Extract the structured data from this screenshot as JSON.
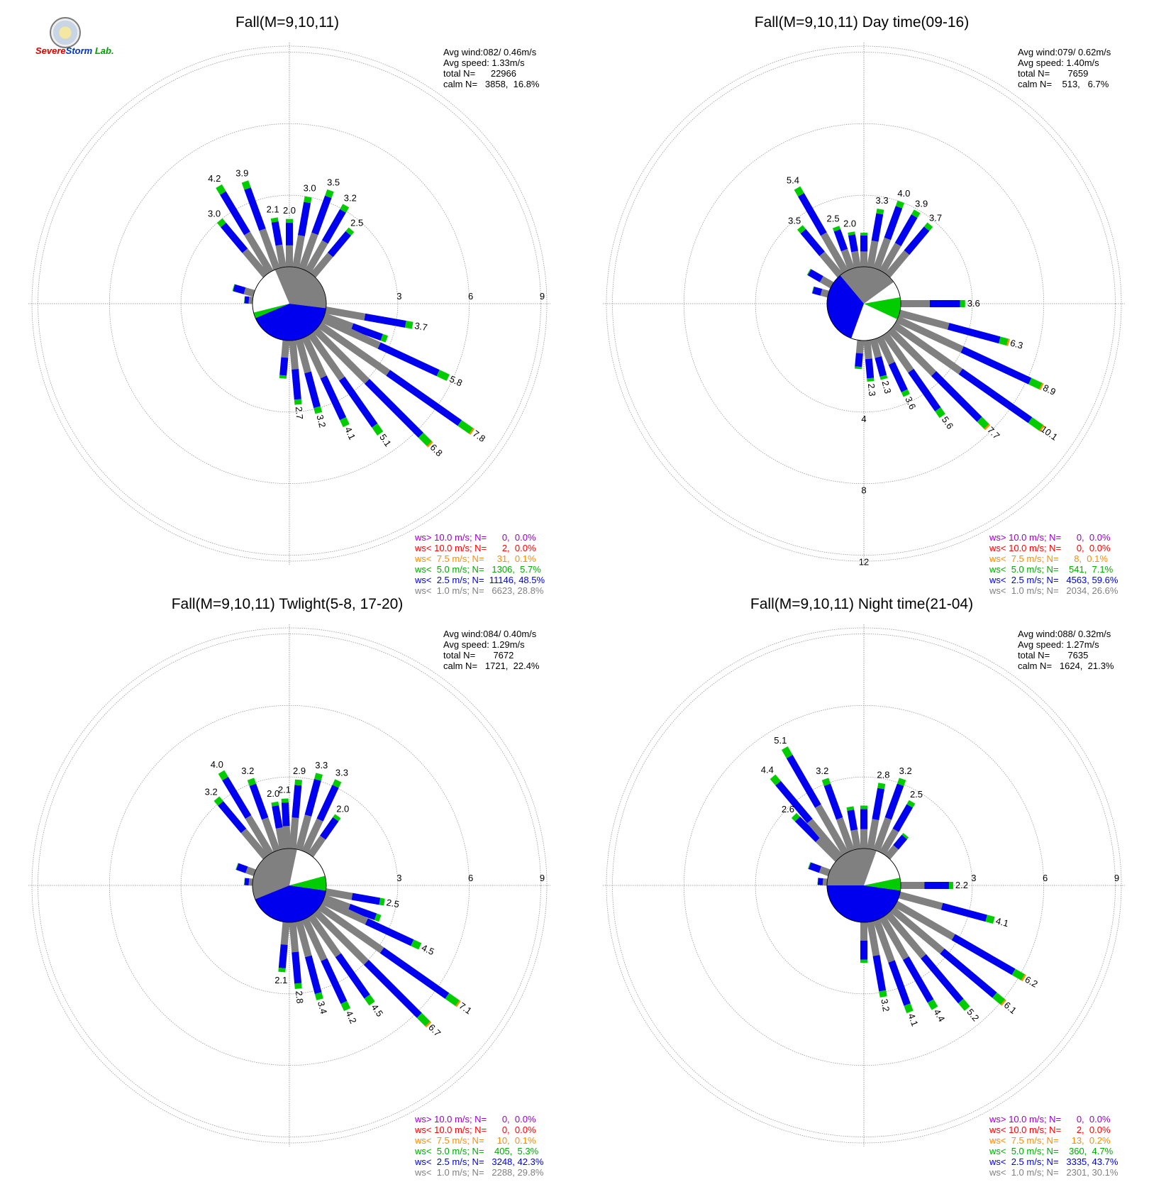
{
  "logo": {
    "line1": "Severe",
    "line2": "Storm",
    "line3": "Lab."
  },
  "chart_data": [
    {
      "type": "windrose",
      "title": "Fall(M=9,10,11)",
      "ring_labels": [
        "3",
        "6",
        "9"
      ],
      "ring_label_dir": 90,
      "stats": {
        "avg_wind": "Avg wind:082/ 0.46m/s",
        "avg_speed": "Avg speed: 1.33m/s",
        "total": "total N=      22966",
        "calm": "calm N=   3858,  16.8%"
      },
      "calm": {
        "gray": [
          337,
          97
        ],
        "blue": [
          97,
          247
        ],
        "green": [
          247,
          256
        ]
      },
      "petals": [
        [
          110,
          2.8
        ],
        [
          275,
          0.35
        ],
        [
          286,
          0.9
        ],
        [
          320,
          3.0
        ],
        [
          329,
          4.2
        ],
        [
          340,
          3.9
        ],
        [
          350,
          2.1
        ],
        [
          360,
          2.0
        ],
        [
          0,
          2.0
        ],
        [
          10,
          3.0
        ],
        [
          20,
          3.5
        ],
        [
          30,
          3.2
        ],
        [
          40,
          2.5
        ],
        [
          100,
          3.7
        ],
        [
          115,
          5.8
        ],
        [
          125,
          7.8
        ],
        [
          135,
          6.8
        ],
        [
          145,
          5.1
        ],
        [
          155,
          4.1
        ],
        [
          165,
          3.2
        ],
        [
          175,
          2.7
        ],
        [
          185,
          1.6
        ]
      ],
      "labeled": [
        [
          100,
          3.7
        ],
        [
          115,
          5.8
        ],
        [
          125,
          7.8
        ],
        [
          135,
          6.8
        ],
        [
          145,
          5.1
        ],
        [
          155,
          4.1
        ],
        [
          165,
          3.2
        ],
        [
          175,
          2.7
        ],
        [
          329,
          4.2
        ],
        [
          340,
          3.9
        ],
        [
          320,
          3.0
        ],
        [
          350,
          2.1
        ],
        [
          0,
          2.0
        ],
        [
          10,
          3.0
        ],
        [
          20,
          3.5
        ],
        [
          30,
          3.2
        ],
        [
          40,
          2.5
        ]
      ],
      "legend": [
        "ws> 10.0 m/s; N=      0,  0.0%",
        "ws< 10.0 m/s; N=      2,  0.0%",
        "ws<  7.5 m/s; N=     31,  0.1%",
        "ws<  5.0 m/s; N=   1306,  5.7%",
        "ws<  2.5 m/s; N=  11146, 48.5%",
        "ws<  1.0 m/s; N=   6623, 28.8%"
      ]
    },
    {
      "type": "windrose",
      "title": "Fall(M=9,10,11) Day time(09-16)",
      "ring_labels": [
        "4",
        "8",
        "12"
      ],
      "ring_label_dir": 180,
      "stats": {
        "avg_wind": "Avg wind:079/ 0.62m/s",
        "avg_speed": "Avg speed: 1.40m/s",
        "total": "total N=       7659",
        "calm": "calm N=    513,   6.7%"
      },
      "calm": {
        "gray": [
          320,
          54
        ],
        "blue": [
          200,
          320
        ],
        "green": [
          80,
          115
        ]
      },
      "petals": [
        [
          285,
          0.9
        ],
        [
          300,
          1.5
        ],
        [
          320,
          3.5
        ],
        [
          330,
          5.4
        ],
        [
          340,
          2.5
        ],
        [
          350,
          2.0
        ],
        [
          0,
          1.9
        ],
        [
          10,
          3.3
        ],
        [
          20,
          4.0
        ],
        [
          30,
          3.9
        ],
        [
          40,
          3.7
        ],
        [
          90,
          3.6
        ],
        [
          105,
          6.3
        ],
        [
          115,
          8.9
        ],
        [
          125,
          10.1
        ],
        [
          135,
          7.7
        ],
        [
          145,
          5.6
        ],
        [
          155,
          3.6
        ],
        [
          165,
          2.3
        ],
        [
          175,
          2.3
        ],
        [
          185,
          1.6
        ]
      ],
      "labeled": [
        [
          90,
          3.6
        ],
        [
          105,
          6.3
        ],
        [
          115,
          8.9
        ],
        [
          125,
          10.1
        ],
        [
          135,
          7.7
        ],
        [
          145,
          5.6
        ],
        [
          155,
          3.6
        ],
        [
          165,
          2.3
        ],
        [
          175,
          2.3
        ],
        [
          330,
          5.4
        ],
        [
          320,
          3.5
        ],
        [
          340,
          2.5
        ],
        [
          350,
          2.0
        ],
        [
          10,
          3.3
        ],
        [
          20,
          4.0
        ],
        [
          30,
          3.9
        ],
        [
          40,
          3.7
        ]
      ],
      "legend": [
        "ws> 10.0 m/s; N=      0,  0.0%",
        "ws< 10.0 m/s; N=      0,  0.0%",
        "ws<  7.5 m/s; N=      8,  0.1%",
        "ws<  5.0 m/s; N=    541,  7.1%",
        "ws<  2.5 m/s; N=   4563, 59.6%",
        "ws<  1.0 m/s; N=   2034, 26.6%"
      ]
    },
    {
      "type": "windrose",
      "title": "Fall(M=9,10,11) Twlight(5-8, 17-20)",
      "ring_labels": [
        "3",
        "6",
        "9"
      ],
      "ring_label_dir": 90,
      "stats": {
        "avg_wind": "Avg wind:084/ 0.40m/s",
        "avg_speed": "Avg speed: 1.29m/s",
        "total": "total N=       7672",
        "calm": "calm N=   1721,  22.4%"
      },
      "calm": {
        "gray": [
          248,
          12
        ],
        "blue": [
          98,
          248
        ],
        "green": [
          75,
          98
        ]
      },
      "petals": [
        [
          110,
          2.5
        ],
        [
          275,
          0.35
        ],
        [
          290,
          0.8
        ],
        [
          320,
          3.2
        ],
        [
          329,
          4.0
        ],
        [
          340,
          3.2
        ],
        [
          350,
          2.0
        ],
        [
          357,
          2.1
        ],
        [
          5,
          2.9
        ],
        [
          15,
          3.3
        ],
        [
          25,
          3.3
        ],
        [
          35,
          2.0
        ],
        [
          100,
          2.5
        ],
        [
          115,
          4.5
        ],
        [
          125,
          7.1
        ],
        [
          135,
          6.7
        ],
        [
          145,
          4.5
        ],
        [
          155,
          4.2
        ],
        [
          165,
          3.4
        ],
        [
          175,
          2.8
        ],
        [
          185,
          2.1
        ]
      ],
      "labeled": [
        [
          100,
          2.5
        ],
        [
          115,
          4.5
        ],
        [
          125,
          7.1
        ],
        [
          135,
          6.7
        ],
        [
          145,
          4.5
        ],
        [
          155,
          4.2
        ],
        [
          165,
          3.4
        ],
        [
          175,
          2.8
        ],
        [
          185,
          2.1
        ],
        [
          329,
          4.0
        ],
        [
          320,
          3.2
        ],
        [
          340,
          3.2
        ],
        [
          350,
          2.0
        ],
        [
          357,
          2.1
        ],
        [
          5,
          2.9
        ],
        [
          15,
          3.3
        ],
        [
          25,
          3.3
        ],
        [
          35,
          2.0
        ]
      ],
      "legend": [
        "ws> 10.0 m/s; N=      0,  0.0%",
        "ws< 10.0 m/s; N=      0,  0.0%",
        "ws<  7.5 m/s; N=     10,  0.1%",
        "ws<  5.0 m/s; N=    405,  5.3%",
        "ws<  2.5 m/s; N=   3248, 42.3%",
        "ws<  1.0 m/s; N=   2288, 29.8%"
      ]
    },
    {
      "type": "windrose",
      "title": "Fall(M=9,10,11) Night time(21-04)",
      "ring_labels": [
        "3",
        "6",
        "9"
      ],
      "ring_label_dir": 90,
      "stats": {
        "avg_wind": "Avg wind:088/ 0.32m/s",
        "avg_speed": "Avg speed: 1.27m/s",
        "total": "total N=       7635",
        "calm": "calm N=   1624,  21.3%"
      },
      "calm": {
        "gray": [
          270,
          20
        ],
        "blue": [
          98,
          270
        ],
        "green": [
          78,
          98
        ]
      },
      "petals": [
        [
          275,
          0.4
        ],
        [
          290,
          0.9
        ],
        [
          315,
          2.6
        ],
        [
          320,
          4.4
        ],
        [
          330,
          5.1
        ],
        [
          340,
          3.2
        ],
        [
          350,
          1.8
        ],
        [
          0,
          1.8
        ],
        [
          10,
          2.8
        ],
        [
          20,
          3.2
        ],
        [
          30,
          2.5
        ],
        [
          40,
          1.2
        ],
        [
          90,
          2.2
        ],
        [
          105,
          4.1
        ],
        [
          120,
          6.2
        ],
        [
          130,
          6.1
        ],
        [
          140,
          5.2
        ],
        [
          150,
          4.4
        ],
        [
          160,
          4.1
        ],
        [
          170,
          3.2
        ],
        [
          180,
          1.7
        ]
      ],
      "labeled": [
        [
          90,
          2.2
        ],
        [
          105,
          4.1
        ],
        [
          120,
          6.2
        ],
        [
          130,
          6.1
        ],
        [
          140,
          5.2
        ],
        [
          150,
          4.4
        ],
        [
          160,
          4.1
        ],
        [
          170,
          3.2
        ],
        [
          320,
          4.4
        ],
        [
          330,
          5.1
        ],
        [
          315,
          2.6
        ],
        [
          340,
          3.2
        ],
        [
          10,
          2.8
        ],
        [
          20,
          3.2
        ],
        [
          30,
          2.5
        ]
      ],
      "legend": [
        "ws> 10.0 m/s; N=      0,  0.0%",
        "ws< 10.0 m/s; N=      2,  0.0%",
        "ws<  7.5 m/s; N=     13,  0.2%",
        "ws<  5.0 m/s; N=    360,  4.7%",
        "ws<  2.5 m/s; N=   3335, 43.7%",
        "ws<  1.0 m/s; N=   2301, 30.1%"
      ]
    }
  ],
  "colors": {
    "gray": "#808080",
    "blue": "#0000ee",
    "green": "#00cc00",
    "orange": "#ff8c00",
    "red": "#ff0000",
    "purple": "#9900cc",
    "legend": [
      "#9900cc",
      "#ff0000",
      "#ff8c00",
      "#00aa00",
      "#0000ee",
      "#808080"
    ]
  }
}
